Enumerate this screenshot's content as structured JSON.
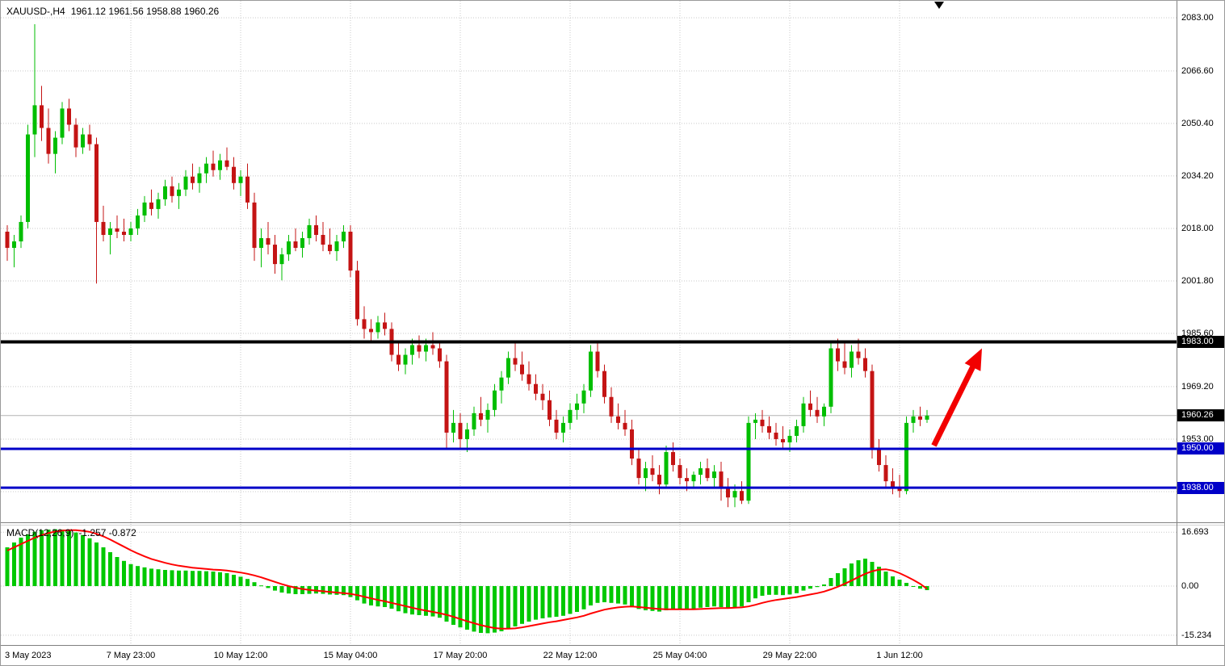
{
  "header": {
    "symbol": "XAUUSD-,H4",
    "quote": "1961.12 1961.56 1958.88 1960.26"
  },
  "indicator": {
    "label": "MACD(12,26,9)",
    "values": "-1.257 -0.872"
  },
  "price_axis": {
    "labels": [
      {
        "text": "2083.00",
        "price": 2083.0
      },
      {
        "text": "2066.60",
        "price": 2066.6
      },
      {
        "text": "2050.40",
        "price": 2050.4
      },
      {
        "text": "2034.20",
        "price": 2034.2
      },
      {
        "text": "2018.00",
        "price": 2018.0
      },
      {
        "text": "2001.80",
        "price": 2001.8
      },
      {
        "text": "1985.60",
        "price": 1985.6
      },
      {
        "text": "1969.20",
        "price": 1969.2
      },
      {
        "text": "1953.00",
        "price": 1953.0
      }
    ],
    "badges": [
      {
        "text": "1983.00",
        "price": 1983.0,
        "color": "#000000"
      },
      {
        "text": "1960.26",
        "price": 1960.26,
        "color": "#000000"
      },
      {
        "text": "1950.00",
        "price": 1950.0,
        "color": "#0000C8"
      },
      {
        "text": "1938.00",
        "price": 1938.0,
        "color": "#0000C8"
      }
    ]
  },
  "macd_axis": {
    "labels": [
      {
        "text": "16.693",
        "value": 16.693
      },
      {
        "text": "0.00",
        "value": 0
      },
      {
        "text": "-15.234",
        "value": -15.234
      }
    ]
  },
  "time_axis": {
    "labels": [
      {
        "text": "3 May 2023",
        "candle_index": 0,
        "align": "left"
      },
      {
        "text": "7 May 23:00",
        "candle_index": 18
      },
      {
        "text": "10 May 12:00",
        "candle_index": 34
      },
      {
        "text": "15 May 04:00",
        "candle_index": 50
      },
      {
        "text": "17 May 20:00",
        "candle_index": 66
      },
      {
        "text": "22 May 12:00",
        "candle_index": 82
      },
      {
        "text": "25 May 04:00",
        "candle_index": 98
      },
      {
        "text": "29 May 22:00",
        "candle_index": 114
      },
      {
        "text": "1 Jun 12:00",
        "candle_index": 130
      }
    ]
  },
  "colors": {
    "bull": "#00BE00",
    "bear": "#C41414",
    "grid": "#C9C9C9",
    "price_line": "#B4B4B4",
    "macd_hist": "#00C800",
    "macd_signal": "#FF0000",
    "separator": "#808080",
    "arrow": "#F20000"
  },
  "chart_data": {
    "type": "candlestick",
    "symbol": "XAUUSD",
    "timeframe": "H4",
    "title": "XAUUSD-,H4 1961.12 1961.56 1958.88 1960.26",
    "current_price": 1960.26,
    "y_axis_range_main": [
      1930,
      2088
    ],
    "y_axis_range_macd": [
      -16.5,
      19
    ],
    "grid_prices": [
      2083.0,
      2066.6,
      2050.4,
      2034.2,
      2018.0,
      2001.8,
      1985.6,
      1969.2,
      1953.0,
      1936.8
    ],
    "macd_grid": [
      16.693,
      0,
      -15.234
    ],
    "hlines": [
      {
        "name": "resistance-line-1983",
        "price": 1983.0,
        "color": "#000000",
        "width": 4
      },
      {
        "name": "support-line-1950",
        "price": 1950.0,
        "color": "#0000C8",
        "width": 3
      },
      {
        "name": "support-line-1938",
        "price": 1938.0,
        "color": "#0000C8",
        "width": 3
      }
    ],
    "arrow": {
      "from_index": 135,
      "from_price": 1951,
      "to_index": 142,
      "to_price": 1981
    },
    "candles": [
      [
        2017,
        2019,
        2008,
        2012
      ],
      [
        2012,
        2016,
        2006,
        2014
      ],
      [
        2014,
        2022,
        2012,
        2020
      ],
      [
        2020,
        2050,
        2018,
        2047
      ],
      [
        2047,
        2081,
        2040,
        2056
      ],
      [
        2056,
        2062,
        2045,
        2049
      ],
      [
        2049,
        2055,
        2038,
        2041
      ],
      [
        2041,
        2048,
        2035,
        2046
      ],
      [
        2046,
        2057,
        2044,
        2055
      ],
      [
        2055,
        2058,
        2048,
        2050
      ],
      [
        2050,
        2052,
        2040,
        2043
      ],
      [
        2043,
        2049,
        2041,
        2047
      ],
      [
        2047,
        2050,
        2042,
        2044
      ],
      [
        2044,
        2046,
        2001,
        2020
      ],
      [
        2020,
        2025,
        2014,
        2016
      ],
      [
        2016,
        2020,
        2010,
        2018
      ],
      [
        2018,
        2022,
        2015,
        2017
      ],
      [
        2017,
        2021,
        2014,
        2016
      ],
      [
        2016,
        2020,
        2014,
        2018
      ],
      [
        2018,
        2024,
        2016,
        2022
      ],
      [
        2022,
        2028,
        2020,
        2026
      ],
      [
        2026,
        2030,
        2022,
        2024
      ],
      [
        2024,
        2029,
        2021,
        2027
      ],
      [
        2027,
        2033,
        2025,
        2031
      ],
      [
        2031,
        2034,
        2026,
        2028
      ],
      [
        2028,
        2032,
        2024,
        2030
      ],
      [
        2030,
        2036,
        2028,
        2034
      ],
      [
        2034,
        2038,
        2030,
        2032
      ],
      [
        2032,
        2037,
        2029,
        2035
      ],
      [
        2035,
        2040,
        2032,
        2038
      ],
      [
        2038,
        2042,
        2034,
        2036
      ],
      [
        2036,
        2041,
        2033,
        2039
      ],
      [
        2039,
        2043,
        2036,
        2037
      ],
      [
        2037,
        2040,
        2030,
        2032
      ],
      [
        2032,
        2036,
        2028,
        2034
      ],
      [
        2034,
        2038,
        2024,
        2026
      ],
      [
        2026,
        2029,
        2008,
        2012
      ],
      [
        2012,
        2018,
        2006,
        2015
      ],
      [
        2015,
        2020,
        2010,
        2013
      ],
      [
        2013,
        2016,
        2004,
        2007
      ],
      [
        2007,
        2012,
        2002,
        2010
      ],
      [
        2010,
        2016,
        2008,
        2014
      ],
      [
        2014,
        2018,
        2011,
        2012
      ],
      [
        2012,
        2017,
        2009,
        2015
      ],
      [
        2015,
        2021,
        2013,
        2019
      ],
      [
        2019,
        2022,
        2014,
        2016
      ],
      [
        2016,
        2020,
        2011,
        2013
      ],
      [
        2013,
        2018,
        2010,
        2011
      ],
      [
        2011,
        2016,
        2008,
        2014
      ],
      [
        2014,
        2019,
        2012,
        2017
      ],
      [
        2017,
        2019,
        2003,
        2005
      ],
      [
        2005,
        2008,
        1988,
        1990
      ],
      [
        1990,
        1994,
        1984,
        1987
      ],
      [
        1987,
        1990,
        1983,
        1986
      ],
      [
        1986,
        1991,
        1984,
        1989
      ],
      [
        1989,
        1992,
        1985,
        1987
      ],
      [
        1987,
        1989,
        1977,
        1979
      ],
      [
        1979,
        1983,
        1974,
        1976
      ],
      [
        1976,
        1981,
        1973,
        1979
      ],
      [
        1979,
        1984,
        1976,
        1982
      ],
      [
        1982,
        1985,
        1978,
        1980
      ],
      [
        1980,
        1984,
        1977,
        1982
      ],
      [
        1982,
        1986,
        1979,
        1981
      ],
      [
        1981,
        1983,
        1975,
        1977
      ],
      [
        1977,
        1979,
        1950,
        1955
      ],
      [
        1955,
        1962,
        1952,
        1958
      ],
      [
        1958,
        1961,
        1950,
        1953
      ],
      [
        1953,
        1958,
        1949,
        1956
      ],
      [
        1956,
        1963,
        1954,
        1961
      ],
      [
        1961,
        1966,
        1957,
        1959
      ],
      [
        1959,
        1964,
        1955,
        1962
      ],
      [
        1962,
        1970,
        1960,
        1968
      ],
      [
        1968,
        1974,
        1964,
        1972
      ],
      [
        1972,
        1980,
        1970,
        1978
      ],
      [
        1978,
        1983,
        1974,
        1976
      ],
      [
        1976,
        1980,
        1971,
        1973
      ],
      [
        1973,
        1977,
        1968,
        1970
      ],
      [
        1970,
        1973,
        1965,
        1967
      ],
      [
        1967,
        1970,
        1962,
        1965
      ],
      [
        1965,
        1968,
        1957,
        1959
      ],
      [
        1959,
        1962,
        1953,
        1955
      ],
      [
        1955,
        1960,
        1952,
        1958
      ],
      [
        1958,
        1964,
        1956,
        1962
      ],
      [
        1962,
        1967,
        1959,
        1964
      ],
      [
        1964,
        1970,
        1961,
        1968
      ],
      [
        1968,
        1982,
        1966,
        1980
      ],
      [
        1980,
        1983,
        1972,
        1974
      ],
      [
        1974,
        1976,
        1964,
        1966
      ],
      [
        1966,
        1969,
        1958,
        1960
      ],
      [
        1960,
        1964,
        1956,
        1958
      ],
      [
        1958,
        1962,
        1954,
        1956
      ],
      [
        1956,
        1959,
        1945,
        1947
      ],
      [
        1947,
        1950,
        1939,
        1941
      ],
      [
        1941,
        1946,
        1937,
        1944
      ],
      [
        1944,
        1948,
        1940,
        1942
      ],
      [
        1942,
        1945,
        1936,
        1939
      ],
      [
        1939,
        1951,
        1938,
        1949
      ],
      [
        1949,
        1952,
        1943,
        1945
      ],
      [
        1945,
        1947,
        1939,
        1941
      ],
      [
        1941,
        1944,
        1937,
        1940
      ],
      [
        1940,
        1943,
        1938,
        1942
      ],
      [
        1942,
        1946,
        1939,
        1944
      ],
      [
        1944,
        1947,
        1940,
        1941
      ],
      [
        1941,
        1945,
        1938,
        1943
      ],
      [
        1943,
        1946,
        1934,
        1938
      ],
      [
        1938,
        1941,
        1932,
        1935
      ],
      [
        1935,
        1939,
        1932,
        1937
      ],
      [
        1937,
        1940,
        1933,
        1934
      ],
      [
        1934,
        1960,
        1933,
        1958
      ],
      [
        1958,
        1961,
        1953,
        1959
      ],
      [
        1959,
        1962,
        1955,
        1957
      ],
      [
        1957,
        1960,
        1953,
        1955
      ],
      [
        1955,
        1958,
        1951,
        1953
      ],
      [
        1953,
        1957,
        1950,
        1952
      ],
      [
        1952,
        1956,
        1949,
        1954
      ],
      [
        1954,
        1959,
        1952,
        1957
      ],
      [
        1957,
        1966,
        1955,
        1964
      ],
      [
        1964,
        1968,
        1960,
        1962
      ],
      [
        1962,
        1966,
        1958,
        1960
      ],
      [
        1960,
        1964,
        1957,
        1963
      ],
      [
        1963,
        1983,
        1961,
        1981
      ],
      [
        1981,
        1984,
        1974,
        1977
      ],
      [
        1977,
        1983,
        1973,
        1975
      ],
      [
        1975,
        1982,
        1972,
        1980
      ],
      [
        1980,
        1984,
        1976,
        1978
      ],
      [
        1978,
        1981,
        1972,
        1974
      ],
      [
        1974,
        1976,
        1947,
        1950
      ],
      [
        1950,
        1953,
        1943,
        1945
      ],
      [
        1945,
        1948,
        1938,
        1940
      ],
      [
        1940,
        1944,
        1936,
        1938
      ],
      [
        1938,
        1942,
        1935,
        1937
      ],
      [
        1937,
        1960,
        1936,
        1958
      ],
      [
        1958,
        1962,
        1955,
        1960
      ],
      [
        1960,
        1963,
        1957,
        1959
      ],
      [
        1959,
        1962,
        1958,
        1960.26
      ]
    ],
    "macd_histogram": [
      12,
      13.5,
      15,
      16,
      16.8,
      17.3,
      17.5,
      17.6,
      17.5,
      17.2,
      16.6,
      15.8,
      14.8,
      13.5,
      12,
      10.5,
      9,
      7.8,
      6.8,
      6.2,
      5.8,
      5.4,
      5.2,
      5,
      4.9,
      4.8,
      4.8,
      4.7,
      4.7,
      4.6,
      4.5,
      4.3,
      4,
      3.5,
      2.9,
      2.2,
      1.2,
      0.2,
      -0.6,
      -1.4,
      -2,
      -2.3,
      -2.5,
      -2.5,
      -2.4,
      -2.3,
      -2.4,
      -2.6,
      -2.7,
      -2.8,
      -3.4,
      -4.4,
      -5.4,
      -6,
      -6.3,
      -6.5,
      -7,
      -7.8,
      -8.4,
      -8.8,
      -9,
      -9.2,
      -9.4,
      -9.8,
      -11,
      -12,
      -12.8,
      -13.5,
      -14.1,
      -14.5,
      -14.6,
      -14.4,
      -14,
      -13.3,
      -12.5,
      -11.7,
      -11,
      -10.4,
      -10,
      -9.7,
      -9.5,
      -9.2,
      -8.6,
      -8,
      -7.2,
      -6,
      -5.2,
      -5,
      -5.2,
      -5.4,
      -5.7,
      -6.3,
      -7.1,
      -7.5,
      -7.7,
      -7.9,
      -7.5,
      -7.3,
      -7.3,
      -7.2,
      -7,
      -6.7,
      -6.5,
      -6.3,
      -6.5,
      -6.7,
      -6.5,
      -6.3,
      -5,
      -3.8,
      -3,
      -2.7,
      -2.7,
      -2.8,
      -2.6,
      -2.2,
      -1.4,
      -0.8,
      -0.3,
      0.5,
      2.5,
      4,
      5.5,
      7,
      8,
      8.5,
      7.5,
      6,
      4.5,
      3,
      2,
      1,
      -0.2,
      -0.8,
      -1.257
    ],
    "macd_signal": [
      11,
      12,
      13,
      14,
      15,
      15.8,
      16.4,
      16.9,
      17.2,
      17.3,
      17.3,
      17.1,
      16.8,
      16.2,
      15.4,
      14.4,
      13.3,
      12.2,
      11.1,
      10.1,
      9.2,
      8.4,
      7.8,
      7.2,
      6.7,
      6.3,
      6,
      5.7,
      5.5,
      5.3,
      5.1,
      5,
      4.8,
      4.5,
      4.2,
      3.8,
      3.3,
      2.7,
      2,
      1.3,
      0.6,
      0,
      -0.5,
      -0.9,
      -1.2,
      -1.4,
      -1.6,
      -1.8,
      -2,
      -2.2,
      -2.4,
      -2.8,
      -3.3,
      -3.8,
      -4.3,
      -4.7,
      -5.2,
      -5.7,
      -6.2,
      -6.7,
      -7.2,
      -7.6,
      -8,
      -8.4,
      -8.9,
      -9.5,
      -10.2,
      -10.9,
      -11.5,
      -12.1,
      -12.6,
      -13,
      -13.2,
      -13.2,
      -13.1,
      -12.8,
      -12.4,
      -12,
      -11.6,
      -11.2,
      -10.9,
      -10.5,
      -10.1,
      -9.7,
      -9.2,
      -8.5,
      -7.9,
      -7.3,
      -6.9,
      -6.6,
      -6.4,
      -6.3,
      -6.5,
      -6.7,
      -6.9,
      -7.1,
      -7.2,
      -7.2,
      -7.2,
      -7.2,
      -7.2,
      -7.1,
      -7,
      -6.9,
      -6.8,
      -6.8,
      -6.7,
      -6.6,
      -6.3,
      -5.8,
      -5.2,
      -4.7,
      -4.3,
      -4,
      -3.7,
      -3.4,
      -3,
      -2.6,
      -2.2,
      -1.7,
      -1,
      -0.2,
      0.7,
      1.7,
      2.8,
      3.8,
      4.6,
      5.1,
      5.2,
      4.8,
      4,
      3,
      1.9,
      0.7,
      -0.872
    ]
  }
}
